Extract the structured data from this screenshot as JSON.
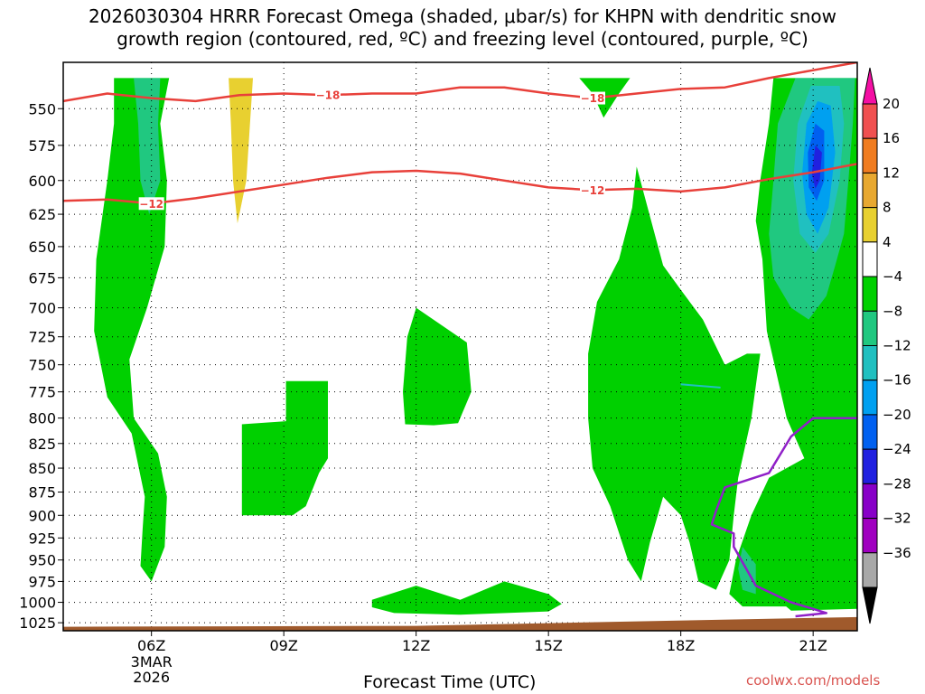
{
  "title_line1": "2026030304 HRRR Forecast Omega (shaded, μbar/s) for KHPN with dendritic snow",
  "title_line2": "growth region (contoured, red, ºC) and freezing level (contoured, purple, ºC)",
  "credit": "coolwx.com/models",
  "chart_data": {
    "type": "contour",
    "xlabel": "Forecast Time (UTC)",
    "x_ticks": [
      "06Z",
      "09Z",
      "12Z",
      "15Z",
      "18Z",
      "21Z"
    ],
    "x_tick_hours": [
      6,
      9,
      12,
      15,
      18,
      21
    ],
    "date_label": [
      "3MAR",
      "2026"
    ],
    "xlim_hours": [
      4,
      22
    ],
    "y_ticks": [
      550,
      575,
      600,
      625,
      650,
      675,
      700,
      725,
      750,
      775,
      800,
      825,
      850,
      875,
      900,
      925,
      950,
      975,
      1000,
      1025
    ],
    "ylim_hPa": [
      520,
      1035
    ],
    "y_scale": "log",
    "y_reversed": true,
    "grid": "dotted",
    "colorbar": {
      "labels": [
        "20",
        "16",
        "12",
        "8",
        "4",
        "-4",
        "-8",
        "-12",
        "-16",
        "-20",
        "-24",
        "-28",
        "-32",
        "-36"
      ],
      "colors": [
        "#f40fa4",
        "#f05050",
        "#f07c20",
        "#e8a830",
        "#e8d030",
        "#ffffff",
        "#00d000",
        "#20c880",
        "#20c0c0",
        "#00a0f0",
        "#0060f0",
        "#2020e0",
        "#8800c8",
        "#a000c0",
        "#a8a8a8",
        "#000000"
      ]
    },
    "shading": [
      {
        "value_range": [
          -8,
          -4
        ],
        "color": "#00d000",
        "region": "06Z band, ~540-975 hPa"
      },
      {
        "value_range": [
          -12,
          -8
        ],
        "color": "#20c880",
        "region": "06Z-07Z, ~530-625 hPa"
      },
      {
        "value_range": [
          4,
          8
        ],
        "color": "#e8d030",
        "region": "08Z, ~530-630 hPa"
      },
      {
        "value_range": [
          -8,
          -4
        ],
        "color": "#00d000",
        "region": "08Z-10Z, ~775-900 hPa"
      },
      {
        "value_range": [
          -8,
          -4
        ],
        "color": "#00d000",
        "region": "12Z-13Z, ~700-800 hPa"
      },
      {
        "value_range": [
          -8,
          -4
        ],
        "color": "#00d000",
        "region": "11Z-15Z, ~985-1015 hPa"
      },
      {
        "value_range": [
          -8,
          -4
        ],
        "color": "#00d000",
        "region": "16Z, ~530-545 hPa"
      },
      {
        "value_range": [
          -8,
          -4
        ],
        "color": "#00d000",
        "region": "16Z-20Z, ~590-975 hPa"
      },
      {
        "value_range": [
          -8,
          -4
        ],
        "color": "#00d000",
        "region": "19Z-22Z, ~530-1005 hPa"
      },
      {
        "value_range": [
          -12,
          -8
        ],
        "color": "#20c880",
        "region": "20Z-22Z, ~530-710 hPa"
      },
      {
        "value_range": [
          -16,
          -12
        ],
        "color": "#20c0c0",
        "region": "20.5Z-21.5Z, ~530-650 hPa"
      },
      {
        "value_range": [
          -20,
          -16
        ],
        "color": "#00a0f0",
        "region": "20.5Z-21.2Z, ~545-640 hPa"
      },
      {
        "value_range": [
          -24,
          -20
        ],
        "color": "#0060f0",
        "region": "21Z, ~560-615 hPa"
      },
      {
        "value_range": [
          -28,
          -24
        ],
        "color": "#2020e0",
        "region": "21Z, ~570-600 hPa"
      }
    ],
    "contours": [
      {
        "name": "-18",
        "color": "#e8403a",
        "level_C": -18,
        "x": [
          4,
          5,
          6,
          7,
          8,
          9,
          10,
          11,
          12,
          13,
          14,
          15,
          16,
          17,
          18,
          19,
          20,
          21,
          22
        ],
        "y": [
          545,
          540,
          543,
          545,
          541,
          540,
          541,
          540,
          540,
          536,
          536,
          540,
          543,
          540,
          537,
          536,
          530,
          525,
          520
        ]
      },
      {
        "name": "-12",
        "color": "#e8403a",
        "level_C": -12,
        "x": [
          4,
          5,
          6,
          7,
          8,
          9,
          10,
          11,
          12,
          13,
          14,
          15,
          16,
          17,
          18,
          19,
          20,
          21,
          22
        ],
        "y": [
          615,
          614,
          617,
          613,
          608,
          603,
          598,
          594,
          593,
          595,
          600,
          605,
          607,
          606,
          608,
          605,
          599,
          594,
          588
        ]
      },
      {
        "name": "0",
        "color": "#9020c8",
        "level_C": 0,
        "x": [
          22,
          21,
          20.5,
          20,
          19,
          18.8,
          18.7,
          19.2,
          19.2,
          19.7,
          20.5,
          21,
          21.3,
          20.6
        ],
        "y": [
          800,
          800,
          818,
          855,
          870,
          895,
          910,
          920,
          935,
          980,
          1000,
          1008,
          1013,
          1017
        ]
      }
    ],
    "terrain": {
      "color": "#a05a2c",
      "surface_hPa_start": 1030,
      "surface_hPa_end": 1018
    }
  }
}
